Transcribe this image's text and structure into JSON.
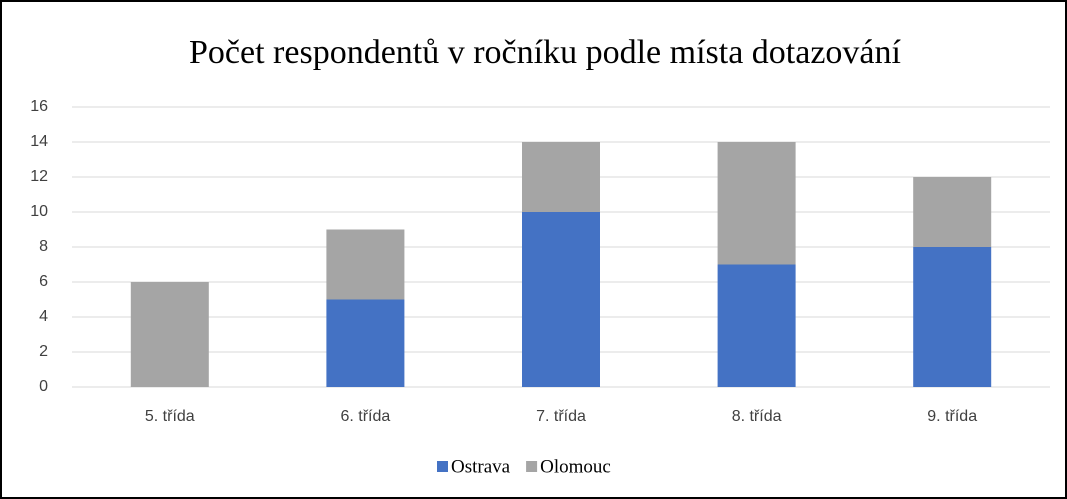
{
  "chart_data": {
    "type": "bar",
    "stacked": true,
    "title": "Počet respondentů v ročníku podle místa dotazování",
    "categories": [
      "5. třída",
      "6. třída",
      "7. třída",
      "8. třída",
      "9. třída"
    ],
    "series": [
      {
        "name": "Ostrava",
        "color": "#4472c4",
        "values": [
          0,
          5,
          10,
          7,
          8
        ]
      },
      {
        "name": "Olomouc",
        "color": "#a5a5a5",
        "values": [
          6,
          4,
          4,
          7,
          4
        ]
      }
    ],
    "ylim": [
      0,
      16
    ],
    "yticks": [
      0,
      2,
      4,
      6,
      8,
      10,
      12,
      14,
      16
    ],
    "grid": true,
    "legend": "bottom"
  }
}
